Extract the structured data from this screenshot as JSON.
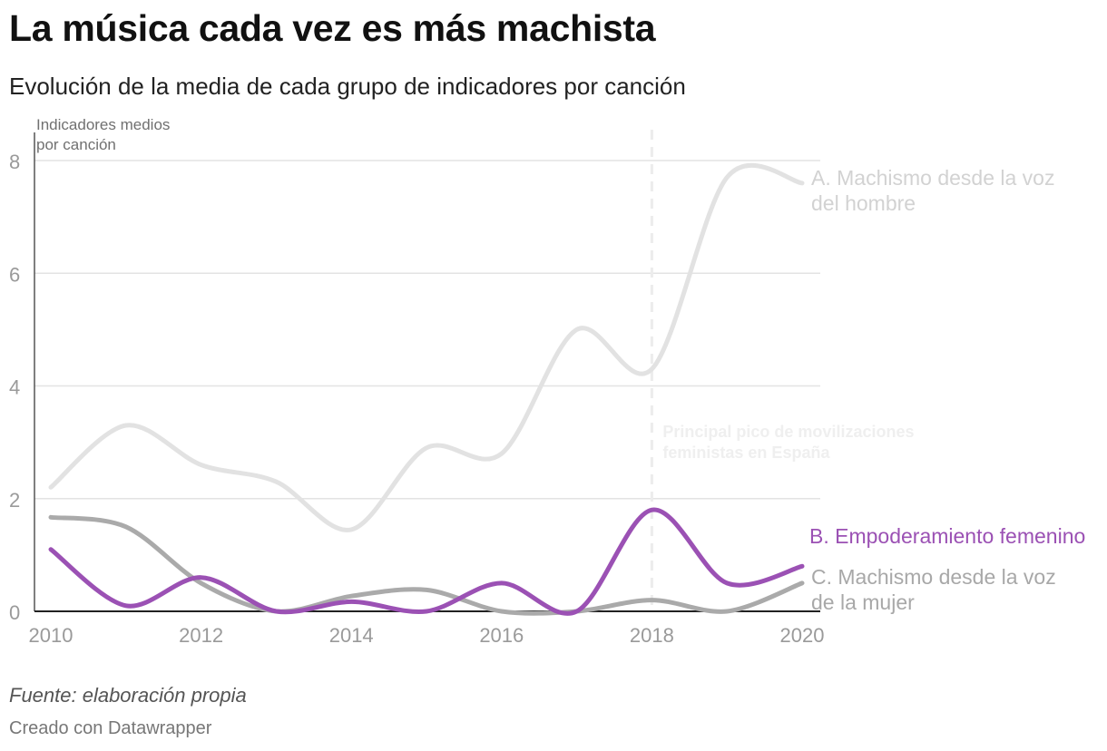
{
  "header": {
    "title": "La música cada vez es más machista",
    "subtitle": "Evolución de la media de cada grupo de indicadores por canción"
  },
  "footer": {
    "source": "Fuente: elaboración propia",
    "credit": "Creado con Datawrapper"
  },
  "chart_data": {
    "type": "line",
    "title": "La música cada vez es más machista",
    "subtitle": "Evolución de la media de cada grupo de indicadores por canción",
    "ylabel": [
      "Indicadores medios",
      "por canción"
    ],
    "xlabel": "",
    "x": [
      2010,
      2011,
      2012,
      2013,
      2014,
      2015,
      2016,
      2017,
      2018,
      2019,
      2020
    ],
    "xticks": [
      "2010",
      "2012",
      "2014",
      "2016",
      "2018",
      "2020"
    ],
    "xlim": [
      2010,
      2020
    ],
    "yticks": [
      "0",
      "2",
      "4",
      "6",
      "8"
    ],
    "ylim": [
      0,
      8.5
    ],
    "grid": true,
    "series": [
      {
        "name": "A. Machismo desde la voz del hombre",
        "label_lines": [
          "A. Machismo desde la voz",
          "del hombre"
        ],
        "color": "#e2e2e2",
        "values": [
          2.2,
          3.3,
          2.6,
          2.3,
          1.45,
          2.9,
          2.8,
          5.0,
          4.3,
          7.7,
          7.6
        ]
      },
      {
        "name": "B. Empoderamiento femenino",
        "label_lines": [
          "B. Empoderamiento femenino"
        ],
        "color": "#9b51b4",
        "values": [
          1.1,
          0.1,
          0.6,
          0.0,
          0.17,
          0.0,
          0.5,
          0.0,
          1.8,
          0.5,
          0.8
        ]
      },
      {
        "name": "C. Machismo desde la voz de la mujer",
        "label_lines": [
          "C. Machismo desde la voz",
          "de la mujer"
        ],
        "color": "#aaaaaa",
        "values": [
          1.67,
          1.5,
          0.5,
          0.0,
          0.27,
          0.38,
          0.0,
          0.0,
          0.2,
          0.0,
          0.5
        ]
      }
    ],
    "annotations": [
      {
        "x": 2018,
        "type": "vline",
        "text_lines": [
          "Principal pico de movilizaciones",
          "feministas en España"
        ]
      }
    ]
  }
}
